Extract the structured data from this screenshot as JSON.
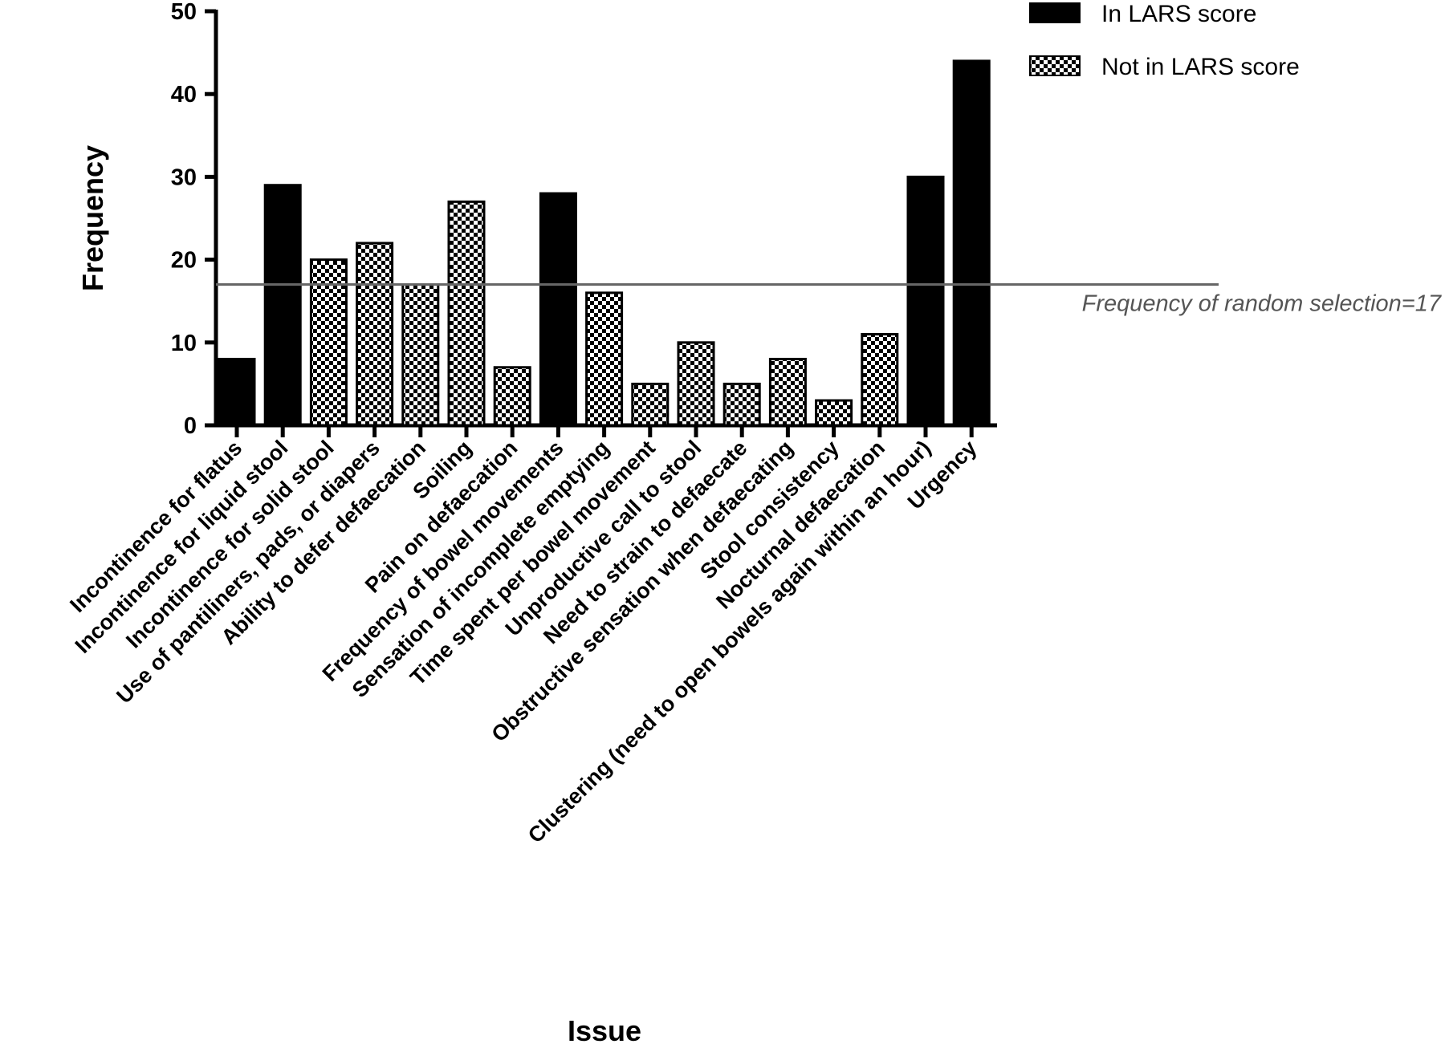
{
  "chart_data": {
    "type": "bar",
    "xlabel": "Issue",
    "ylabel": "Frequency",
    "ylim": [
      0,
      50
    ],
    "yticks": [
      0,
      10,
      20,
      30,
      40,
      50
    ],
    "grid": false,
    "legend_position": "top-right",
    "legend": [
      {
        "label": "In LARS score",
        "pattern": "solid"
      },
      {
        "label": "Not in LARS score",
        "pattern": "checkered"
      }
    ],
    "bars": [
      {
        "label": "Incontinence for flatus",
        "value": 8,
        "group": "In LARS score"
      },
      {
        "label": "Incontinence for liquid stool",
        "value": 29,
        "group": "In LARS score"
      },
      {
        "label": "Incontinence for solid stool",
        "value": 20,
        "group": "Not in LARS score"
      },
      {
        "label": "Use of pantiliners, pads, or diapers",
        "value": 22,
        "group": "Not in LARS score"
      },
      {
        "label": "Ability to defer defaecation",
        "value": 17,
        "group": "Not in LARS score"
      },
      {
        "label": "Soiling",
        "value": 27,
        "group": "Not in LARS score"
      },
      {
        "label": "Pain on defaecation",
        "value": 7,
        "group": "Not in LARS score"
      },
      {
        "label": "Frequency of bowel movements",
        "value": 28,
        "group": "In LARS score"
      },
      {
        "label": "Sensation of incomplete emptying",
        "value": 16,
        "group": "Not in LARS score"
      },
      {
        "label": "Time spent per bowel movement",
        "value": 5,
        "group": "Not in LARS score"
      },
      {
        "label": "Unproductive call to stool",
        "value": 10,
        "group": "Not in LARS score"
      },
      {
        "label": "Need to strain to defaecate",
        "value": 5,
        "group": "Not in LARS score"
      },
      {
        "label": "Obstructive sensation when defaecating",
        "value": 8,
        "group": "Not in LARS score"
      },
      {
        "label": "Stool consistency",
        "value": 3,
        "group": "Not in LARS score"
      },
      {
        "label": "Nocturnal defaecation",
        "value": 11,
        "group": "Not in LARS score"
      },
      {
        "label": "Clustering (need to open bowels again within an hour)",
        "value": 30,
        "group": "In LARS score"
      },
      {
        "label": "Urgency",
        "value": 44,
        "group": "In LARS score"
      }
    ],
    "reference_line": {
      "value": 17,
      "label": "Frequency of random selection=17",
      "color": "#666666"
    },
    "colors": {
      "solid": "#000000",
      "check_dark": "#000000",
      "check_light": "#ffffff"
    }
  }
}
